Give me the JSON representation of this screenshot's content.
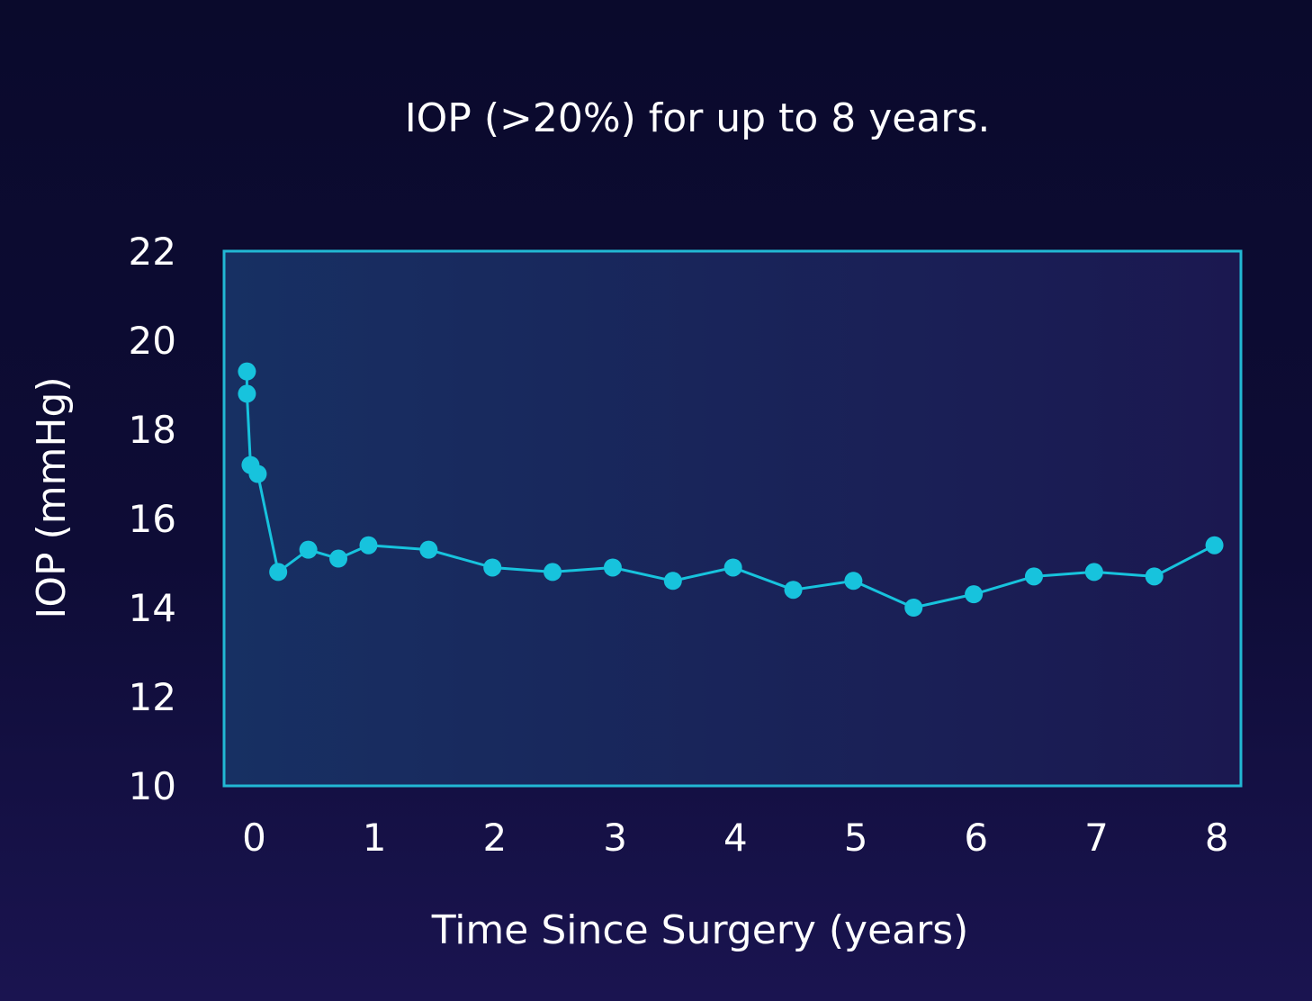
{
  "chart_data": {
    "type": "line",
    "title": "IOP (>20%) for up to 8 years.",
    "xlabel": "Time Since Surgery (years)",
    "ylabel": "IOP (mmHg)",
    "xlim": [
      -0.25,
      8.2
    ],
    "ylim": [
      10,
      22
    ],
    "xticks": [
      0,
      1,
      2,
      3,
      4,
      5,
      6,
      7,
      8
    ],
    "yticks": [
      10,
      12,
      14,
      16,
      18,
      20,
      22
    ],
    "grid": false,
    "legend": "none",
    "colors": {
      "line": "#17c3dd",
      "frame": "#22b8d4",
      "plot_bg_left": "#173063",
      "plot_bg_right": "#1b1850",
      "text": "#ffffff"
    },
    "series": [
      {
        "x": [
          -0.06,
          -0.06,
          -0.03,
          0.03,
          0.2,
          0.45,
          0.7,
          0.95,
          1.45,
          1.98,
          2.48,
          2.98,
          3.48,
          3.98,
          4.48,
          4.98,
          5.48,
          5.98,
          6.48,
          6.98,
          7.48,
          7.98
        ],
        "y": [
          19.3,
          18.8,
          17.2,
          17.0,
          14.8,
          15.3,
          15.1,
          15.4,
          15.3,
          14.9,
          14.8,
          14.9,
          14.6,
          14.9,
          14.4,
          14.6,
          14.0,
          14.3,
          14.7,
          14.8,
          14.7,
          15.4
        ]
      }
    ]
  }
}
